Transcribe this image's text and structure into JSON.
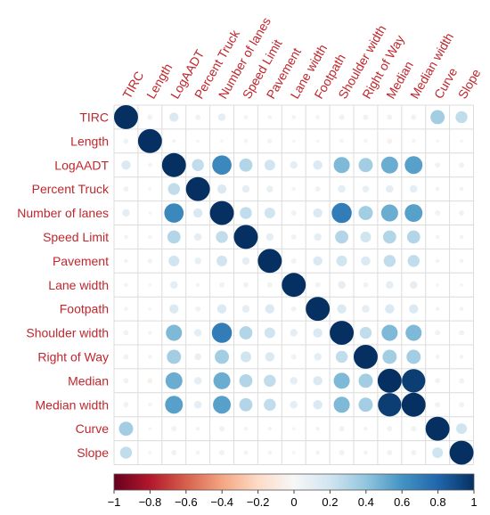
{
  "chart_data": {
    "type": "heatmap",
    "variables": [
      "TIRC",
      "Length",
      "LogAADT",
      "Percent Truck",
      "Number of lanes",
      "Speed Limit",
      "Pavement",
      "Lane width",
      "Footpath",
      "Shoulder width",
      "Right of Way",
      "Median",
      "Median width",
      "Curve",
      "Slope"
    ],
    "matrix": [
      [
        1,
        0.05,
        0.15,
        0.05,
        0.1,
        0.03,
        0.03,
        0.03,
        0.03,
        0.05,
        0.05,
        0.05,
        0.05,
        0.35,
        0.25
      ],
      [
        0.05,
        1,
        0.03,
        0.02,
        0.02,
        -0.03,
        -0.04,
        0.02,
        0.02,
        -0.03,
        -0.03,
        -0.05,
        -0.03,
        0.02,
        0.02
      ],
      [
        0.15,
        0.03,
        1,
        0.25,
        0.65,
        0.3,
        0.2,
        0.1,
        0.15,
        0.45,
        0.35,
        0.5,
        0.55,
        0.05,
        0.05
      ],
      [
        0.05,
        0.02,
        0.25,
        1,
        0.15,
        0.1,
        0.08,
        0.03,
        0.05,
        0.1,
        0.08,
        0.1,
        0.1,
        0.03,
        0.03
      ],
      [
        0.1,
        0.02,
        0.65,
        0.15,
        1,
        0.25,
        0.2,
        0.05,
        0.15,
        0.7,
        0.35,
        0.5,
        0.55,
        0.05,
        0.05
      ],
      [
        0.03,
        -0.03,
        0.3,
        0.1,
        0.25,
        1,
        0.1,
        0.05,
        0.1,
        0.3,
        0.2,
        0.3,
        0.3,
        0.03,
        0.03
      ],
      [
        0.03,
        -0.04,
        0.2,
        0.08,
        0.2,
        0.1,
        1,
        0.05,
        0.15,
        0.2,
        0.15,
        0.25,
        0.25,
        0.03,
        0.03
      ],
      [
        0.03,
        0.02,
        0.1,
        0.03,
        0.05,
        0.05,
        0.05,
        1,
        0.05,
        0.1,
        0.05,
        0.1,
        0.1,
        0.02,
        0.02
      ],
      [
        0.03,
        0.02,
        0.15,
        0.05,
        0.15,
        0.1,
        0.15,
        0.05,
        1,
        0.15,
        0.1,
        0.15,
        0.15,
        0.03,
        0.03
      ],
      [
        0.05,
        -0.03,
        0.45,
        0.1,
        0.7,
        0.3,
        0.2,
        0.1,
        0.15,
        1,
        0.25,
        0.45,
        0.45,
        0.05,
        0.05
      ],
      [
        0.05,
        -0.03,
        0.35,
        0.08,
        0.35,
        0.2,
        0.15,
        0.05,
        0.1,
        0.25,
        1,
        0.35,
        0.35,
        0.03,
        0.03
      ],
      [
        0.05,
        -0.05,
        0.5,
        0.1,
        0.5,
        0.3,
        0.25,
        0.1,
        0.15,
        0.45,
        0.35,
        1,
        0.95,
        0.05,
        0.05
      ],
      [
        0.05,
        -0.03,
        0.55,
        0.1,
        0.55,
        0.3,
        0.25,
        0.1,
        0.15,
        0.45,
        0.35,
        0.95,
        1,
        0.05,
        0.05
      ],
      [
        0.35,
        0.02,
        0.05,
        0.03,
        0.05,
        0.03,
        0.03,
        0.02,
        0.03,
        0.05,
        0.03,
        0.05,
        0.05,
        1,
        0.2
      ],
      [
        0.25,
        0.02,
        0.05,
        0.03,
        0.05,
        0.03,
        0.03,
        0.02,
        0.03,
        0.05,
        0.03,
        0.05,
        0.05,
        0.2,
        1
      ]
    ],
    "colorbar": {
      "ticks": [
        "−1",
        "−0.8",
        "−0.6",
        "−0.4",
        "−0.2",
        "0",
        "0.2",
        "0.4",
        "0.6",
        "0.8",
        "1"
      ],
      "range": [
        -1,
        1
      ]
    },
    "colors": {
      "negative_end": "#67001f",
      "neutral": "#f7f7f7",
      "positive_end": "#053061",
      "label": "#c0272d"
    }
  }
}
